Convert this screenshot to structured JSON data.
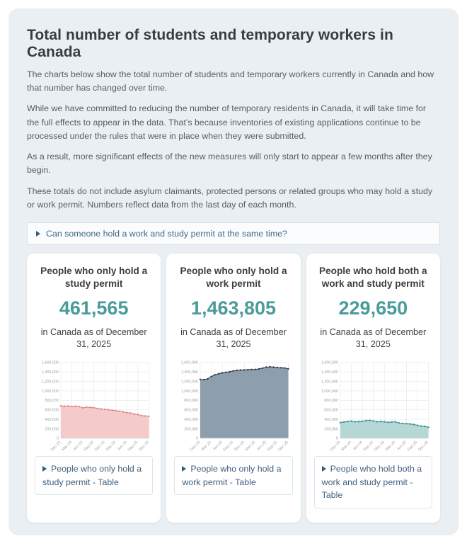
{
  "page": {
    "title": "Total number of students and temporary workers in Canada",
    "paragraphs": [
      "The charts below show the total number of students and temporary workers currently in Canada and how that number has changed over time.",
      "While we have committed to reducing the number of temporary residents in Canada, it will take time for the full effects to appear in the data. That’s because inventories of existing applications continue to be processed under the rules that were in place when they were submitted.",
      "As a result, more significant effects of the new measures will only start to appear a few months after they begin.",
      "These totals do not include asylum claimants, protected persons or related groups who may hold a study or work permit. Numbers reflect data from the last day of each month."
    ]
  },
  "faq_expander": {
    "label": "Can someone hold a work and study permit at the same time?"
  },
  "colors": {
    "accent_teal": "#4a9c98",
    "container_bg": "#e9eff2",
    "expander_text": "#41607e"
  },
  "cards": [
    {
      "title": "People who only hold a study permit",
      "value": "461,565",
      "subtitle": "in Canada as of December 31, 2025",
      "table_expander": "People who only hold a study permit - Table"
    },
    {
      "title": "People who only hold a work permit",
      "value": "1,463,805",
      "subtitle": "in Canada as of December 31, 2025",
      "table_expander": "People who only hold a work permit - Table"
    },
    {
      "title": "People who hold both a work and study permit",
      "value": "229,650",
      "subtitle": "in Canada as of December 31, 2025",
      "table_expander": "People who hold both a work and study permit - Table"
    }
  ],
  "chart_data": [
    {
      "type": "area",
      "title": "People who only hold a study permit",
      "x": [
        "Dec-23",
        "Jan-24",
        "Feb-24",
        "Mar-24",
        "Apr-24",
        "May-24",
        "Jun-24",
        "Jul-24",
        "Aug-24",
        "Sep-24",
        "Oct-24",
        "Nov-24",
        "Dec-24",
        "Jan-25",
        "Feb-25",
        "Mar-25",
        "Apr-25",
        "May-25",
        "Jun-25",
        "Jul-25",
        "Aug-25",
        "Sep-25",
        "Oct-25",
        "Nov-25",
        "Dec-25"
      ],
      "values": [
        682000,
        676000,
        679000,
        671000,
        675000,
        667000,
        640000,
        656000,
        650000,
        644000,
        628000,
        616000,
        610000,
        600000,
        591000,
        581000,
        570000,
        556000,
        541000,
        530000,
        511000,
        500000,
        478000,
        470000,
        461565
      ],
      "ylim": [
        0,
        1600000
      ],
      "ytick_step": 200000,
      "xtick_every": 3,
      "grid": true,
      "line_color": "#e08585",
      "fill_color": "#f5caca"
    },
    {
      "type": "area",
      "title": "People who only hold a work permit",
      "x": [
        "Dec-23",
        "Jan-24",
        "Feb-24",
        "Mar-24",
        "Apr-24",
        "May-24",
        "Jun-24",
        "Jul-24",
        "Aug-24",
        "Sep-24",
        "Oct-24",
        "Nov-24",
        "Dec-24",
        "Jan-25",
        "Feb-25",
        "Mar-25",
        "Apr-25",
        "May-25",
        "Jun-25",
        "Jul-25",
        "Aug-25",
        "Sep-25",
        "Oct-25",
        "Nov-25",
        "Dec-25"
      ],
      "values": [
        1240000,
        1236000,
        1252000,
        1300000,
        1340000,
        1360000,
        1380000,
        1392000,
        1402000,
        1420000,
        1432000,
        1440000,
        1441000,
        1446000,
        1450000,
        1452000,
        1462000,
        1480000,
        1500000,
        1507000,
        1500000,
        1492000,
        1487000,
        1482000,
        1463805
      ],
      "ylim": [
        0,
        1600000
      ],
      "ytick_step": 200000,
      "xtick_every": 3,
      "grid": true,
      "line_color": "#2f3f4e",
      "fill_color": "#8d9eac"
    },
    {
      "type": "area",
      "title": "People who hold both a work and study permit",
      "x": [
        "Dec-23",
        "Jan-24",
        "Feb-24",
        "Mar-24",
        "Apr-24",
        "May-24",
        "Jun-24",
        "Jul-24",
        "Aug-24",
        "Sep-24",
        "Oct-24",
        "Nov-24",
        "Dec-24",
        "Jan-25",
        "Feb-25",
        "Mar-25",
        "Apr-25",
        "May-25",
        "Jun-25",
        "Jul-25",
        "Aug-25",
        "Sep-25",
        "Oct-25",
        "Nov-25",
        "Dec-25"
      ],
      "values": [
        332000,
        342000,
        352000,
        362000,
        346000,
        352000,
        357000,
        372000,
        376000,
        366000,
        346000,
        352000,
        346000,
        336000,
        341000,
        346000,
        321000,
        311000,
        306000,
        301000,
        291000,
        271000,
        256000,
        250000,
        229650
      ],
      "ylim": [
        0,
        1600000
      ],
      "ytick_step": 200000,
      "xtick_every": 3,
      "grid": true,
      "line_color": "#3f918d",
      "fill_color": "#b5d8d6"
    }
  ]
}
